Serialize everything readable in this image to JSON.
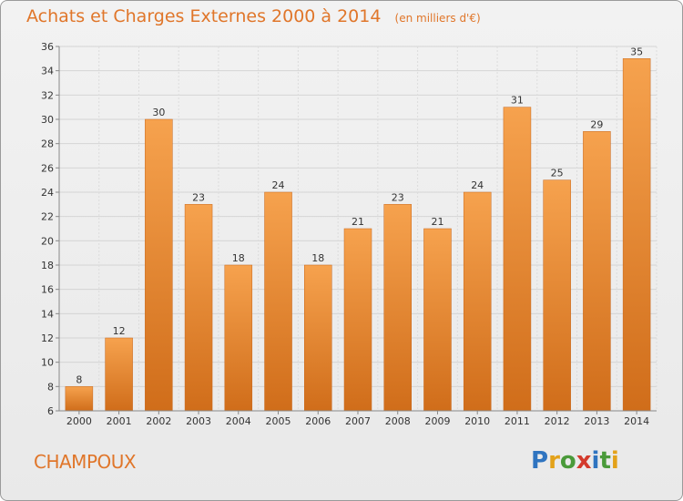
{
  "title": "Achats et Charges Externes 2000 à 2014",
  "subtitle": "(en milliers d'€)",
  "commune": "CHAMPOUX",
  "logo": {
    "text": "Proxiti",
    "letters": [
      {
        "ch": "P",
        "color": "#2f74c0"
      },
      {
        "ch": "r",
        "color": "#e3a21a"
      },
      {
        "ch": "o",
        "color": "#4a9a3a"
      },
      {
        "ch": "x",
        "color": "#d33a2c"
      },
      {
        "ch": "i",
        "color": "#2f74c0"
      },
      {
        "ch": "t",
        "color": "#4a9a3a"
      },
      {
        "ch": "i",
        "color": "#e3a21a"
      }
    ]
  },
  "chart_data": {
    "type": "bar",
    "categories": [
      "2000",
      "2001",
      "2002",
      "2003",
      "2004",
      "2005",
      "2006",
      "2007",
      "2008",
      "2009",
      "2010",
      "2011",
      "2012",
      "2013",
      "2014"
    ],
    "values": [
      8,
      12,
      30,
      23,
      18,
      24,
      18,
      21,
      23,
      21,
      24,
      31,
      25,
      29,
      35
    ],
    "ylim": [
      6,
      36
    ],
    "yticks": [
      6,
      8,
      10,
      12,
      14,
      16,
      18,
      20,
      22,
      24,
      26,
      28,
      30,
      32,
      34,
      36
    ],
    "grid": true,
    "bar_color_top": "#f6a24e",
    "bar_color_bottom": "#d06d1a",
    "xlabel": "",
    "ylabel": ""
  }
}
